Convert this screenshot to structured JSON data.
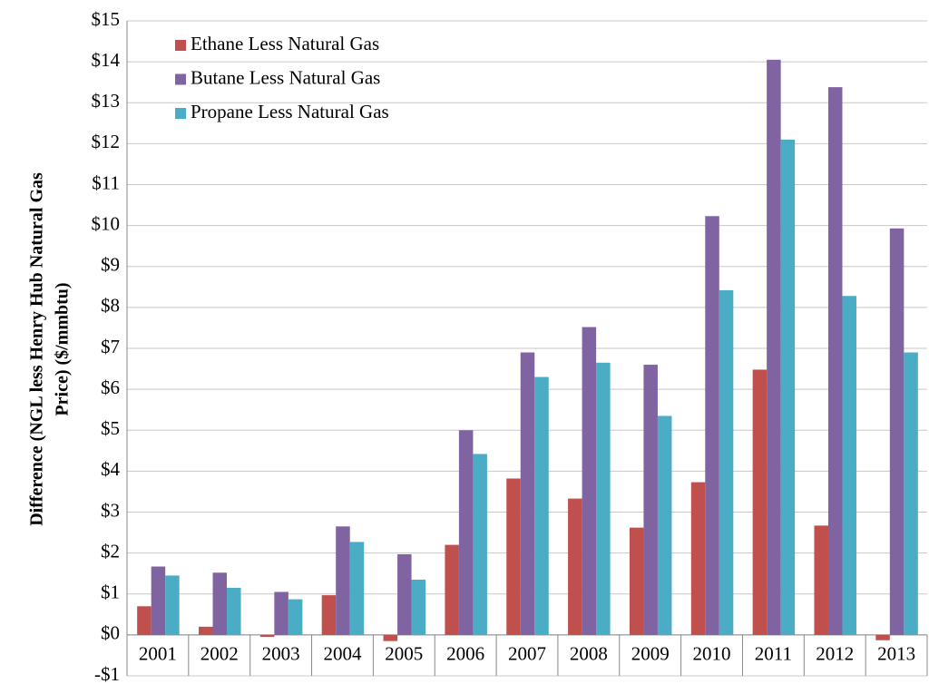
{
  "chart_data": {
    "type": "bar",
    "ylabel": [
      "Difference (NGL less Henry Hub Natural Gas",
      "Price) ($/mmbtu)"
    ],
    "categories": [
      "2001",
      "2002",
      "2003",
      "2004",
      "2005",
      "2006",
      "2007",
      "2008",
      "2009",
      "2010",
      "2011",
      "2012",
      "2013"
    ],
    "series": [
      {
        "name": "Ethane Less Natural Gas",
        "color": "#c0504d",
        "values": [
          0.7,
          0.2,
          -0.05,
          0.97,
          -0.15,
          2.2,
          3.82,
          3.33,
          2.62,
          3.73,
          6.48,
          2.67,
          -0.13
        ]
      },
      {
        "name": "Butane Less Natural Gas",
        "color": "#8064a2",
        "values": [
          1.67,
          1.52,
          1.05,
          2.65,
          1.97,
          5.0,
          6.9,
          7.52,
          6.6,
          10.23,
          14.05,
          13.38,
          9.93
        ]
      },
      {
        "name": "Propane Less Natural Gas",
        "color": "#4bacc6",
        "values": [
          1.45,
          1.15,
          0.87,
          2.27,
          1.35,
          4.42,
          6.3,
          6.65,
          5.35,
          8.42,
          12.1,
          8.28,
          6.9
        ]
      }
    ],
    "ylim": [
      -1,
      15
    ],
    "yticks": [
      {
        "value": -1,
        "label": "-$1"
      },
      {
        "value": 0,
        "label": "$0"
      },
      {
        "value": 1,
        "label": "$1"
      },
      {
        "value": 2,
        "label": "$2"
      },
      {
        "value": 3,
        "label": "$3"
      },
      {
        "value": 4,
        "label": "$4"
      },
      {
        "value": 5,
        "label": "$5"
      },
      {
        "value": 6,
        "label": "$6"
      },
      {
        "value": 7,
        "label": "$7"
      },
      {
        "value": 8,
        "label": "$8"
      },
      {
        "value": 9,
        "label": "$9"
      },
      {
        "value": 10,
        "label": "$10"
      },
      {
        "value": 11,
        "label": "$11"
      },
      {
        "value": 12,
        "label": "$12"
      },
      {
        "value": 13,
        "label": "$13"
      },
      {
        "value": 14,
        "label": "$14"
      },
      {
        "value": 15,
        "label": "$15"
      }
    ],
    "grid": true,
    "legend": "top-left"
  }
}
